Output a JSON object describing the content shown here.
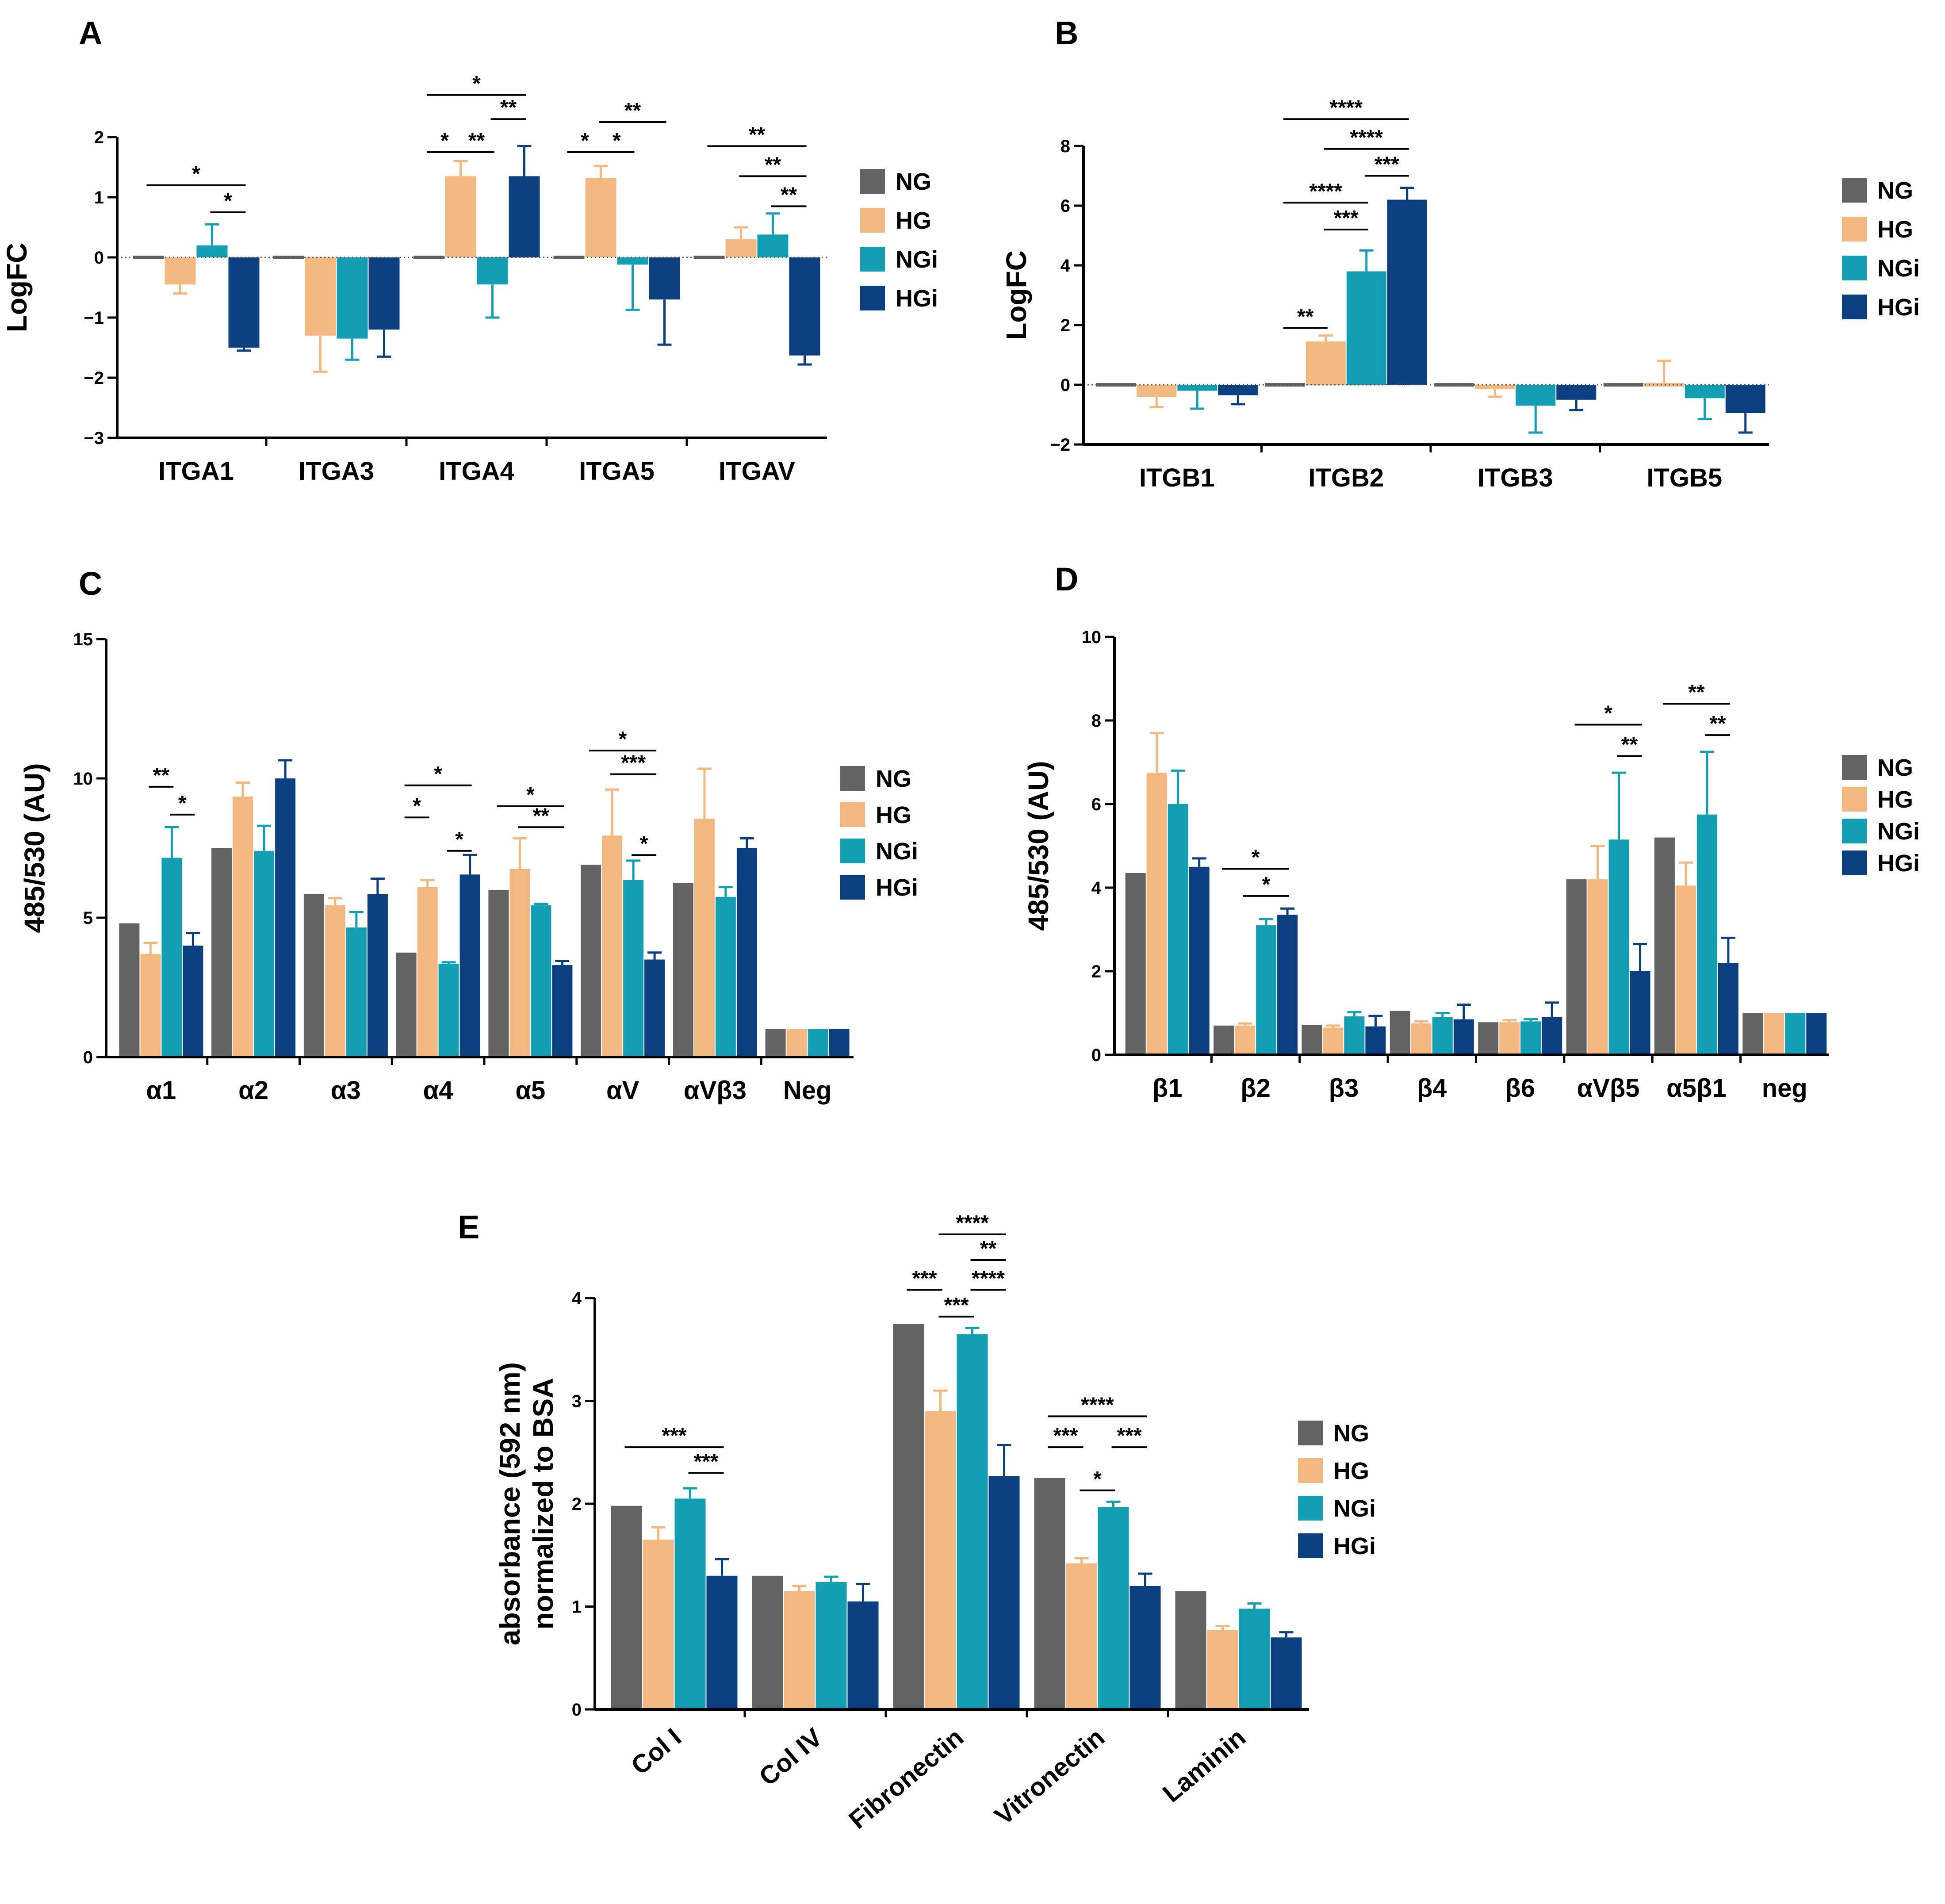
{
  "colors": {
    "NG": "#636363",
    "HG": "#f2b880",
    "NGi": "#139eb3",
    "HGi": "#0b3f80"
  },
  "chart_data": [
    {
      "panel": "A",
      "type": "bar",
      "ylabel": "LogFC",
      "ylim": [
        -3,
        2
      ],
      "yticks": [
        -3,
        -2,
        -1,
        0,
        1,
        2
      ],
      "zero_line": "dotted",
      "categories": [
        "ITGA1",
        "ITGA3",
        "ITGA4",
        "ITGA5",
        "ITGAV"
      ],
      "series": [
        {
          "name": "NG",
          "values": [
            0,
            0,
            0,
            0,
            0
          ],
          "err": [
            0,
            0,
            0,
            0,
            0
          ]
        },
        {
          "name": "HG",
          "values": [
            -0.45,
            -1.3,
            1.35,
            1.32,
            0.3
          ],
          "err": [
            0.15,
            0.6,
            0.25,
            0.2,
            0.2
          ]
        },
        {
          "name": "NGi",
          "values": [
            0.2,
            -1.35,
            -0.45,
            -0.12,
            0.38
          ],
          "err": [
            0.35,
            0.35,
            0.55,
            0.75,
            0.35
          ]
        },
        {
          "name": "HGi",
          "values": [
            -1.5,
            -1.2,
            1.35,
            -0.7,
            -1.63
          ],
          "err": [
            0.05,
            0.45,
            0.5,
            0.75,
            0.15
          ]
        }
      ],
      "significance": [
        {
          "cat": 0,
          "from": "NG",
          "to": "HGi",
          "label": "*",
          "y": 1.2
        },
        {
          "cat": 0,
          "from": "NGi",
          "to": "HGi",
          "label": "*",
          "y": 0.75
        },
        {
          "cat": 2,
          "from": "NG",
          "to": "HGi",
          "label": "*",
          "y": 2.7
        },
        {
          "cat": 2,
          "from": "NG",
          "to": "HG",
          "label": "*",
          "y": 1.75
        },
        {
          "cat": 2,
          "from": "HG",
          "to": "NGi",
          "label": "**",
          "y": 1.75
        },
        {
          "cat": 2,
          "from": "NGi",
          "to": "HGi",
          "label": "**",
          "y": 2.3
        },
        {
          "cat": 3,
          "from": "NG",
          "to": "HG",
          "label": "*",
          "y": 1.75
        },
        {
          "cat": 3,
          "from": "HG",
          "to": "NGi",
          "label": "*",
          "y": 1.75
        },
        {
          "cat": 3,
          "from": "HG",
          "to": "HGi",
          "label": "**",
          "y": 2.25
        },
        {
          "cat": 4,
          "from": "NG",
          "to": "HGi",
          "label": "**",
          "y": 1.85
        },
        {
          "cat": 4,
          "from": "HG",
          "to": "HGi",
          "label": "**",
          "y": 1.35
        },
        {
          "cat": 4,
          "from": "NGi",
          "to": "HGi",
          "label": "**",
          "y": 0.85
        }
      ],
      "legend": [
        "NG",
        "HG",
        "NGi",
        "HGi"
      ],
      "legend_position": "right"
    },
    {
      "panel": "B",
      "type": "bar",
      "ylabel": "LogFC",
      "ylim": [
        -2,
        8
      ],
      "yticks": [
        -2,
        0,
        2,
        4,
        6,
        8
      ],
      "zero_line": "dotted",
      "categories": [
        "ITGB1",
        "ITGB2",
        "ITGB3",
        "ITGB5"
      ],
      "series": [
        {
          "name": "NG",
          "values": [
            0,
            0,
            0,
            0
          ],
          "err": [
            0,
            0,
            0,
            0
          ]
        },
        {
          "name": "HG",
          "values": [
            -0.4,
            1.45,
            -0.15,
            0
          ],
          "err": [
            0.35,
            0.2,
            0.25,
            0.8
          ]
        },
        {
          "name": "NGi",
          "values": [
            -0.2,
            3.8,
            -0.7,
            -0.45
          ],
          "err": [
            0.6,
            0.7,
            0.9,
            0.7
          ]
        },
        {
          "name": "HGi",
          "values": [
            -0.35,
            6.2,
            -0.5,
            -0.95
          ],
          "err": [
            0.3,
            0.4,
            0.35,
            0.65
          ]
        }
      ],
      "significance": [
        {
          "cat": 1,
          "from": "NG",
          "to": "HGi",
          "label": "****",
          "y": 8.9
        },
        {
          "cat": 1,
          "from": "HG",
          "to": "HGi",
          "label": "****",
          "y": 7.9
        },
        {
          "cat": 1,
          "from": "NGi",
          "to": "HGi",
          "label": "***",
          "y": 7.0
        },
        {
          "cat": 1,
          "from": "NG",
          "to": "NGi",
          "label": "****",
          "y": 6.1
        },
        {
          "cat": 1,
          "from": "HG",
          "to": "NGi",
          "label": "***",
          "y": 5.2
        },
        {
          "cat": 1,
          "from": "NG",
          "to": "HG",
          "label": "**",
          "y": 1.9
        }
      ],
      "legend": [
        "NG",
        "HG",
        "NGi",
        "HGi"
      ],
      "legend_position": "right"
    },
    {
      "panel": "C",
      "type": "bar",
      "ylabel": "485/530 (AU)",
      "ylim": [
        0,
        15
      ],
      "yticks": [
        0,
        5,
        10,
        15
      ],
      "categories": [
        "α1",
        "α2",
        "α3",
        "α4",
        "α5",
        "αV",
        "αVβ3",
        "Neg"
      ],
      "series": [
        {
          "name": "NG",
          "values": [
            4.8,
            7.5,
            5.85,
            3.75,
            6.0,
            6.9,
            6.25,
            1.0
          ],
          "err": [
            0,
            0,
            0,
            0,
            0,
            0,
            0,
            0
          ]
        },
        {
          "name": "HG",
          "values": [
            3.7,
            9.35,
            5.45,
            6.1,
            6.75,
            7.95,
            8.55,
            1.0
          ],
          "err": [
            0.4,
            0.5,
            0.25,
            0.25,
            1.1,
            1.65,
            1.8,
            0
          ]
        },
        {
          "name": "NGi",
          "values": [
            7.15,
            7.4,
            4.65,
            3.35,
            5.45,
            6.35,
            5.75,
            1.0
          ],
          "err": [
            1.1,
            0.9,
            0.55,
            0.05,
            0.05,
            0.7,
            0.35,
            0
          ]
        },
        {
          "name": "HGi",
          "values": [
            4.0,
            10.0,
            5.85,
            6.55,
            3.3,
            3.5,
            7.5,
            1.0
          ],
          "err": [
            0.45,
            0.65,
            0.55,
            0.7,
            0.15,
            0.25,
            0.35,
            0
          ]
        }
      ],
      "significance": [
        {
          "cat": 0,
          "from": "HG",
          "to": "NGi",
          "label": "**",
          "y": 9.7
        },
        {
          "cat": 0,
          "from": "NGi",
          "to": "HGi",
          "label": "*",
          "y": 8.7
        },
        {
          "cat": 3,
          "from": "NG",
          "to": "HGi",
          "label": "*",
          "y": 9.75
        },
        {
          "cat": 3,
          "from": "NG",
          "to": "HG",
          "label": "*",
          "y": 8.6
        },
        {
          "cat": 3,
          "from": "NGi",
          "to": "HGi",
          "label": "*",
          "y": 7.4
        },
        {
          "cat": 4,
          "from": "NG",
          "to": "HGi",
          "label": "*",
          "y": 9.0
        },
        {
          "cat": 4,
          "from": "HG",
          "to": "HGi",
          "label": "**",
          "y": 8.25
        },
        {
          "cat": 5,
          "from": "NG",
          "to": "HGi",
          "label": "*",
          "y": 11.0
        },
        {
          "cat": 5,
          "from": "HG",
          "to": "HGi",
          "label": "***",
          "y": 10.15
        },
        {
          "cat": 5,
          "from": "NGi",
          "to": "HGi",
          "label": "*",
          "y": 7.25
        }
      ],
      "legend": [
        "NG",
        "HG",
        "NGi",
        "HGi"
      ],
      "legend_position": "right"
    },
    {
      "panel": "D",
      "type": "bar",
      "ylabel": "485/530 (AU)",
      "ylim": [
        0,
        10
      ],
      "yticks": [
        0,
        2,
        4,
        6,
        8,
        10
      ],
      "categories": [
        "β1",
        "β2",
        "β3",
        "β4",
        "β6",
        "αVβ5",
        "α5β1",
        "neg"
      ],
      "series": [
        {
          "name": "NG",
          "values": [
            4.35,
            0.7,
            0.72,
            1.05,
            0.78,
            4.2,
            5.2,
            1.0
          ],
          "err": [
            0,
            0,
            0,
            0,
            0,
            0,
            0,
            0
          ]
        },
        {
          "name": "HG",
          "values": [
            6.75,
            0.7,
            0.65,
            0.75,
            0.78,
            4.2,
            4.05,
            1.0
          ],
          "err": [
            0.95,
            0.05,
            0.05,
            0.05,
            0.05,
            0.8,
            0.55,
            0
          ]
        },
        {
          "name": "NGi",
          "values": [
            6.0,
            3.1,
            0.92,
            0.9,
            0.8,
            5.15,
            5.75,
            1.0
          ],
          "err": [
            0.8,
            0.15,
            0.1,
            0.1,
            0.05,
            1.6,
            1.5,
            0
          ]
        },
        {
          "name": "HGi",
          "values": [
            4.5,
            3.35,
            0.68,
            0.85,
            0.9,
            2.0,
            2.2,
            1.0
          ],
          "err": [
            0.2,
            0.15,
            0.25,
            0.35,
            0.35,
            0.65,
            0.6,
            0
          ]
        }
      ],
      "significance": [
        {
          "cat": 1,
          "from": "NG",
          "to": "HGi",
          "label": "*",
          "y": 4.45
        },
        {
          "cat": 1,
          "from": "HG",
          "to": "HGi",
          "label": "*",
          "y": 3.8
        },
        {
          "cat": 5,
          "from": "NG",
          "to": "HGi",
          "label": "*",
          "y": 7.9
        },
        {
          "cat": 5,
          "from": "NGi",
          "to": "HGi",
          "label": "**",
          "y": 7.15
        },
        {
          "cat": 6,
          "from": "NG",
          "to": "HGi",
          "label": "**",
          "y": 8.4
        },
        {
          "cat": 6,
          "from": "NGi",
          "to": "HGi",
          "label": "**",
          "y": 7.65
        }
      ],
      "legend": [
        "NG",
        "HG",
        "NGi",
        "HGi"
      ],
      "legend_position": "right"
    },
    {
      "panel": "E",
      "type": "bar",
      "ylabel": "absorbance (592 nm) normalized to BSA",
      "ylabel_lines": [
        "absorbance (592 nm)",
        "normalized to BSA"
      ],
      "ylim": [
        0,
        4
      ],
      "yticks": [
        0,
        1,
        2,
        3,
        4
      ],
      "categories": [
        "Col I",
        "Col IV",
        "Fibronectin",
        "Vitronectin",
        "Laminin"
      ],
      "series": [
        {
          "name": "NG",
          "values": [
            1.98,
            1.3,
            3.75,
            2.25,
            1.15
          ],
          "err": [
            0,
            0,
            0,
            0,
            0
          ]
        },
        {
          "name": "HG",
          "values": [
            1.65,
            1.15,
            2.9,
            1.42,
            0.77
          ],
          "err": [
            0.12,
            0.05,
            0.2,
            0.05,
            0.04
          ]
        },
        {
          "name": "NGi",
          "values": [
            2.05,
            1.24,
            3.65,
            1.97,
            0.98
          ],
          "err": [
            0.1,
            0.05,
            0.06,
            0.05,
            0.05
          ]
        },
        {
          "name": "HGi",
          "values": [
            1.3,
            1.05,
            2.27,
            1.2,
            0.7
          ],
          "err": [
            0.16,
            0.17,
            0.3,
            0.12,
            0.05
          ]
        }
      ],
      "significance": [
        {
          "cat": 0,
          "from": "NG",
          "to": "HGi",
          "label": "***",
          "y": 2.55
        },
        {
          "cat": 0,
          "from": "NGi",
          "to": "HGi",
          "label": "***",
          "y": 2.3
        },
        {
          "cat": 2,
          "from": "HG",
          "to": "HGi",
          "label": "****",
          "y": 4.62
        },
        {
          "cat": 2,
          "from": "NGi",
          "to": "HGi",
          "label": "**",
          "y": 4.37
        },
        {
          "cat": 2,
          "from": "NG",
          "to": "HG",
          "label": "***",
          "y": 4.08
        },
        {
          "cat": 2,
          "from": "NGi",
          "to": "HGi",
          "label": "****",
          "y": 4.08
        },
        {
          "cat": 2,
          "from": "HG",
          "to": "NGi",
          "label": "***",
          "y": 3.82
        },
        {
          "cat": 3,
          "from": "NG",
          "to": "HGi",
          "label": "****",
          "y": 2.85
        },
        {
          "cat": 3,
          "from": "NG",
          "to": "HG",
          "label": "***",
          "y": 2.55
        },
        {
          "cat": 3,
          "from": "NGi",
          "to": "HGi",
          "label": "***",
          "y": 2.55
        },
        {
          "cat": 3,
          "from": "HG",
          "to": "NGi",
          "label": "*",
          "y": 2.13
        }
      ],
      "legend": [
        "NG",
        "HG",
        "NGi",
        "HGi"
      ],
      "legend_position": "right"
    }
  ]
}
